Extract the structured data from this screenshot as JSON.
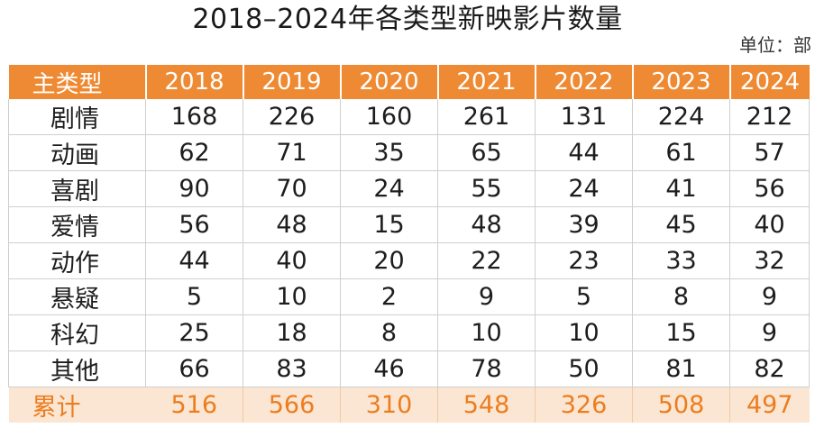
{
  "title": "2018–2024年各类型新映影片数量",
  "unit_label": "单位：部",
  "colors": {
    "header_bg": "#ee8a33",
    "header_text": "#ffffff",
    "total_bg": "#fbe6d3",
    "total_text": "#ec7d1f"
  },
  "chart_data": {
    "type": "table",
    "title": "2018–2024年各类型新映影片数量",
    "unit": "单位：部",
    "columns": [
      "主类型",
      "2018",
      "2019",
      "2020",
      "2021",
      "2022",
      "2023",
      "2024"
    ],
    "rows": [
      {
        "label": "剧情",
        "values": [
          168,
          226,
          160,
          261,
          131,
          224,
          212
        ]
      },
      {
        "label": "动画",
        "values": [
          62,
          71,
          35,
          65,
          44,
          61,
          57
        ]
      },
      {
        "label": "喜剧",
        "values": [
          90,
          70,
          24,
          55,
          24,
          41,
          56
        ]
      },
      {
        "label": "爱情",
        "values": [
          56,
          48,
          15,
          48,
          39,
          45,
          40
        ]
      },
      {
        "label": "动作",
        "values": [
          44,
          40,
          20,
          22,
          23,
          33,
          32
        ]
      },
      {
        "label": "悬疑",
        "values": [
          5,
          10,
          2,
          9,
          5,
          8,
          9
        ]
      },
      {
        "label": "科幻",
        "values": [
          25,
          18,
          8,
          10,
          10,
          15,
          9
        ]
      },
      {
        "label": "其他",
        "values": [
          66,
          83,
          46,
          78,
          50,
          81,
          82
        ]
      }
    ],
    "total": {
      "label": "累计",
      "values": [
        516,
        566,
        310,
        548,
        326,
        508,
        497
      ]
    }
  }
}
